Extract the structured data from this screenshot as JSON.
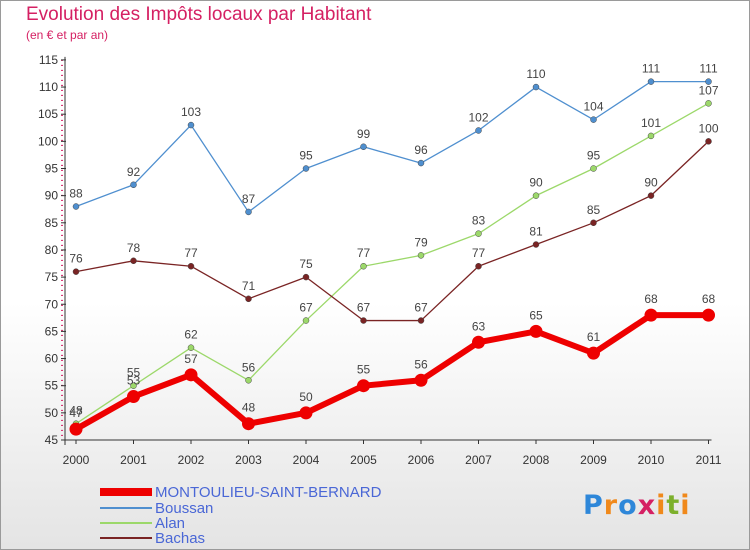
{
  "header": {
    "title": "Evolution des Impôts locaux par Habitant",
    "subtitle": "(en € et par an)"
  },
  "logo": {
    "text": "Proxiti",
    "colors": [
      "#2e87d9",
      "#f0891b",
      "#2e87d9",
      "#d52063",
      "#f0891b",
      "#7cb02c",
      "#f0891b"
    ]
  },
  "chart_data": {
    "type": "line",
    "x": [
      "2000",
      "2001",
      "2002",
      "2003",
      "2004",
      "2005",
      "2006",
      "2007",
      "2008",
      "2009",
      "2010",
      "2011"
    ],
    "ylim": [
      45,
      115
    ],
    "yticks": [
      45,
      50,
      55,
      60,
      65,
      70,
      75,
      80,
      85,
      90,
      95,
      100,
      105,
      110,
      115
    ],
    "grid": false,
    "legend_position": "bottom-left",
    "series": [
      {
        "name": "Boussan",
        "color": "#4f8fcf",
        "values": [
          88,
          92,
          103,
          87,
          95,
          99,
          96,
          102,
          110,
          104,
          111,
          111
        ]
      },
      {
        "name": "Alan",
        "color": "#9cd86a",
        "values": [
          48,
          55,
          62,
          56,
          67,
          77,
          79,
          83,
          90,
          95,
          101,
          107
        ]
      },
      {
        "name": "Bachas",
        "color": "#7a2424",
        "values": [
          76,
          78,
          77,
          71,
          75,
          67,
          67,
          77,
          81,
          85,
          90,
          100
        ]
      },
      {
        "name": "MONTOULIEU-SAINT-BERNARD",
        "color": "#ee0000",
        "values": [
          47,
          53,
          57,
          48,
          50,
          55,
          56,
          63,
          65,
          61,
          68,
          68
        ]
      }
    ],
    "legend": [
      {
        "name": "MONTOULIEU-SAINT-BERNARD",
        "color": "#ee0000"
      },
      {
        "name": "Boussan",
        "color": "#4f8fcf"
      },
      {
        "name": "Alan",
        "color": "#9cd86a"
      },
      {
        "name": "Bachas",
        "color": "#7a2424"
      }
    ]
  }
}
